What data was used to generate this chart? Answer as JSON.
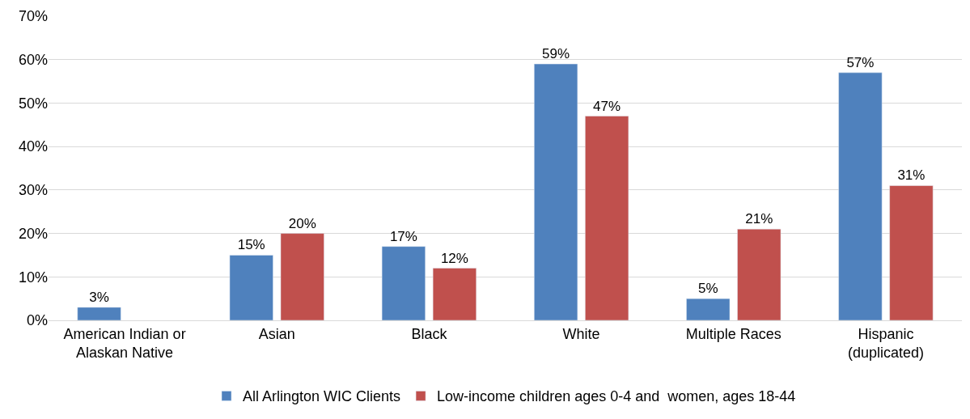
{
  "chart_data": {
    "type": "bar",
    "categories": [
      "American Indian or\nAlaskan Native",
      "Asian",
      "Black",
      "White",
      "Multiple Races",
      "Hispanic\n(duplicated)"
    ],
    "series": [
      {
        "name": "All Arlington WIC Clients",
        "color": "#4f81bd",
        "values": [
          3,
          15,
          17,
          59,
          5,
          57
        ],
        "value_labels": [
          "3%",
          "15%",
          "17%",
          "59%",
          "5%",
          "57%"
        ]
      },
      {
        "name": "Low-income children ages 0-4 and  women, ages 18-44",
        "color": "#c0504d",
        "values": [
          null,
          20,
          12,
          47,
          21,
          31
        ],
        "value_labels": [
          null,
          "20%",
          "12%",
          "47%",
          "21%",
          "31%"
        ]
      }
    ],
    "ylim": [
      0,
      70
    ],
    "yticks": [
      {
        "value": 0,
        "label": "0%"
      },
      {
        "value": 10,
        "label": "10%"
      },
      {
        "value": 20,
        "label": "20%"
      },
      {
        "value": 30,
        "label": "30%"
      },
      {
        "value": 40,
        "label": "40%"
      },
      {
        "value": 50,
        "label": "50%"
      },
      {
        "value": 60,
        "label": "60%"
      },
      {
        "value": 70,
        "label": "70%"
      }
    ],
    "grid": "y",
    "legend": "bottom"
  }
}
